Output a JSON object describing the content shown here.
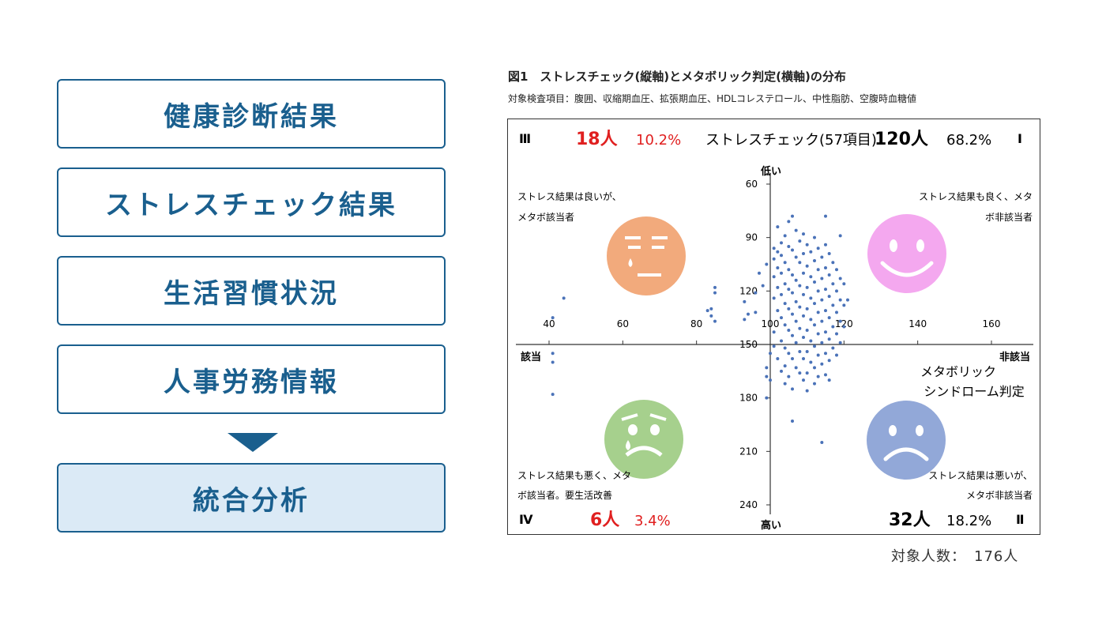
{
  "flow": {
    "steps": [
      "健康診断結果",
      "ストレスチェック結果",
      "生活習慣状況",
      "人事労務情報"
    ],
    "final": "統合分析"
  },
  "figure": {
    "title": "図1　ストレスチェック(縦軸)とメタボリック判定(横軸)の分布",
    "subtitle": "対象検査項目：腹囲、収縮期血圧、拡張期血圧、HDLコレステロール、中性脂肪、空腹時血糖値",
    "total": "対象人数：　176人"
  },
  "colors": {
    "accent": "#1a5f8e",
    "final_bg": "#dbeaf6",
    "red": "#e02020",
    "dot": "#4a72b8",
    "face_orange": "#f2aa7c",
    "face_pink": "#f4a8ef",
    "face_green": "#a6d08d",
    "face_blue": "#92a8d8"
  },
  "chart_data": {
    "type": "scatter",
    "y_axis_title": "ストレスチェック(57項目)",
    "x_axis_title": "メタボリック\nシンドローム判定",
    "x_left_label": "該当",
    "x_right_label": "非該当",
    "y_top_label": "低い",
    "y_bottom_label": "高い",
    "xlim": [
      40,
      160
    ],
    "ylim": [
      60,
      240
    ],
    "y_inverted": true,
    "x_ticks": [
      40,
      60,
      80,
      100,
      120,
      140,
      160
    ],
    "y_ticks": [
      60,
      90,
      120,
      150,
      180,
      210,
      240
    ],
    "axis_cross": {
      "x": 100,
      "y": 150
    },
    "quadrants": {
      "I": {
        "numeral": "Ⅰ",
        "count": "120人",
        "percent": "68.2%",
        "note": [
          "ストレス結果も良く、メタ",
          "ボ非該当者"
        ],
        "face": "happy"
      },
      "II": {
        "numeral": "Ⅱ",
        "count": "32人",
        "percent": "18.2%",
        "note": [
          "ストレス結果は悪いが、",
          "メタボ非該当者"
        ],
        "face": "sad"
      },
      "III": {
        "numeral": "Ⅲ",
        "count": "18人",
        "percent": "10.2%",
        "note": [
          "ストレス結果は良いが、",
          "メタボ該当者"
        ],
        "face": "worried"
      },
      "IV": {
        "numeral": "Ⅳ",
        "count": "6人",
        "percent": "3.4%",
        "note": [
          "ストレス結果も悪く、メタ",
          "ボ該当者。要生活改善"
        ],
        "face": "crying"
      }
    },
    "points": [
      [
        41,
        135
      ],
      [
        41,
        155
      ],
      [
        41,
        160
      ],
      [
        41,
        178
      ],
      [
        44,
        124
      ],
      [
        83,
        131
      ],
      [
        84,
        130
      ],
      [
        84,
        134
      ],
      [
        85,
        118
      ],
      [
        85,
        121
      ],
      [
        85,
        137
      ],
      [
        93,
        126
      ],
      [
        93,
        136
      ],
      [
        94,
        133
      ],
      [
        96,
        121
      ],
      [
        96,
        132
      ],
      [
        97,
        110
      ],
      [
        98,
        117
      ],
      [
        99,
        105
      ],
      [
        99,
        163
      ],
      [
        99,
        168
      ],
      [
        99,
        180
      ],
      [
        100,
        155
      ],
      [
        100,
        170
      ],
      [
        101,
        96
      ],
      [
        101,
        102
      ],
      [
        101,
        112
      ],
      [
        101,
        124
      ],
      [
        101,
        143
      ],
      [
        101,
        151
      ],
      [
        102,
        84
      ],
      [
        102,
        98
      ],
      [
        102,
        107
      ],
      [
        102,
        118
      ],
      [
        102,
        131
      ],
      [
        102,
        158
      ],
      [
        103,
        93
      ],
      [
        103,
        100
      ],
      [
        103,
        110
      ],
      [
        103,
        122
      ],
      [
        103,
        135
      ],
      [
        103,
        148
      ],
      [
        103,
        165
      ],
      [
        104,
        89
      ],
      [
        104,
        104
      ],
      [
        104,
        116
      ],
      [
        104,
        127
      ],
      [
        104,
        139
      ],
      [
        104,
        152
      ],
      [
        104,
        162
      ],
      [
        104,
        172
      ],
      [
        105,
        81
      ],
      [
        105,
        95
      ],
      [
        105,
        108
      ],
      [
        105,
        119
      ],
      [
        105,
        130
      ],
      [
        105,
        142
      ],
      [
        105,
        155
      ],
      [
        105,
        168
      ],
      [
        106,
        78
      ],
      [
        106,
        97
      ],
      [
        106,
        111
      ],
      [
        106,
        121
      ],
      [
        106,
        133
      ],
      [
        106,
        145
      ],
      [
        106,
        158
      ],
      [
        106,
        175
      ],
      [
        106,
        193
      ],
      [
        107,
        86
      ],
      [
        107,
        101
      ],
      [
        107,
        114
      ],
      [
        107,
        126
      ],
      [
        107,
        137
      ],
      [
        107,
        149
      ],
      [
        107,
        163
      ],
      [
        108,
        92
      ],
      [
        108,
        104
      ],
      [
        108,
        117
      ],
      [
        108,
        129
      ],
      [
        108,
        141
      ],
      [
        108,
        154
      ],
      [
        108,
        166
      ],
      [
        109,
        88
      ],
      [
        109,
        99
      ],
      [
        109,
        110
      ],
      [
        109,
        122
      ],
      [
        109,
        134
      ],
      [
        109,
        146
      ],
      [
        109,
        158
      ],
      [
        109,
        170
      ],
      [
        110,
        94
      ],
      [
        110,
        106
      ],
      [
        110,
        118
      ],
      [
        110,
        130
      ],
      [
        110,
        142
      ],
      [
        110,
        154
      ],
      [
        110,
        166
      ],
      [
        110,
        176
      ],
      [
        111,
        98
      ],
      [
        111,
        112
      ],
      [
        111,
        124
      ],
      [
        111,
        136
      ],
      [
        111,
        148
      ],
      [
        111,
        160
      ],
      [
        112,
        90
      ],
      [
        112,
        103
      ],
      [
        112,
        115
      ],
      [
        112,
        127
      ],
      [
        112,
        139
      ],
      [
        112,
        151
      ],
      [
        112,
        163
      ],
      [
        112,
        172
      ],
      [
        113,
        96
      ],
      [
        113,
        108
      ],
      [
        113,
        120
      ],
      [
        113,
        132
      ],
      [
        113,
        144
      ],
      [
        113,
        156
      ],
      [
        113,
        168
      ],
      [
        114,
        101
      ],
      [
        114,
        113
      ],
      [
        114,
        125
      ],
      [
        114,
        137
      ],
      [
        114,
        149
      ],
      [
        114,
        161
      ],
      [
        114,
        205
      ],
      [
        115,
        78
      ],
      [
        115,
        94
      ],
      [
        115,
        107
      ],
      [
        115,
        119
      ],
      [
        115,
        131
      ],
      [
        115,
        143
      ],
      [
        115,
        155
      ],
      [
        115,
        167
      ],
      [
        116,
        99
      ],
      [
        116,
        111
      ],
      [
        116,
        123
      ],
      [
        116,
        135
      ],
      [
        116,
        147
      ],
      [
        116,
        159
      ],
      [
        116,
        170
      ],
      [
        117,
        104
      ],
      [
        117,
        116
      ],
      [
        117,
        128
      ],
      [
        117,
        140
      ],
      [
        117,
        152
      ],
      [
        118,
        108
      ],
      [
        118,
        120
      ],
      [
        118,
        132
      ],
      [
        118,
        144
      ],
      [
        118,
        156
      ],
      [
        119,
        89
      ],
      [
        119,
        113
      ],
      [
        119,
        125
      ],
      [
        119,
        137
      ],
      [
        119,
        149
      ],
      [
        120,
        116
      ],
      [
        120,
        128
      ],
      [
        120,
        140
      ],
      [
        121,
        125
      ]
    ]
  }
}
